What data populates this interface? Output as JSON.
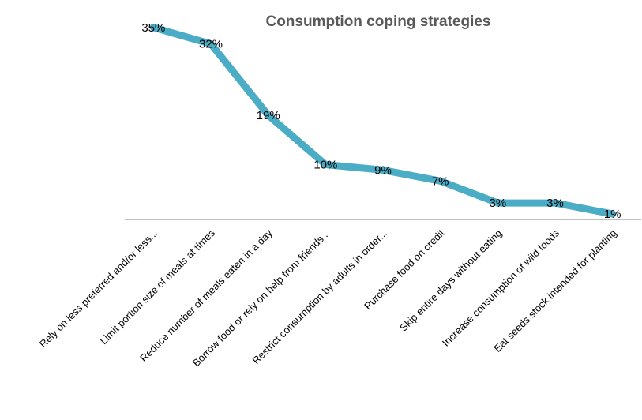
{
  "chart_data": {
    "type": "line",
    "title": "Consumption coping strategies",
    "categories": [
      "Rely on less preferred and/or less...",
      "Limit portion size of meals at times",
      "Reduce number of meals eaten in a day",
      "Borrow food or rely on help from friends...",
      "Restrict consumption by adults in order...",
      "Purchase food on credit",
      "Skip entire days without eating",
      "Increase consumption of wild foods",
      "Eat seeds stock intended for planting"
    ],
    "series": [
      {
        "values": [
          35,
          32,
          19,
          10,
          9,
          7,
          3,
          3,
          1
        ],
        "labels": [
          "35%",
          "32%",
          "19%",
          "10%",
          "9%",
          "7%",
          "3%",
          "3%",
          "1%"
        ]
      }
    ],
    "ylim": [
      0,
      40
    ],
    "grid": false,
    "legend": "none",
    "colors": {
      "line": "#4BACC6",
      "axis": "#808080",
      "title": "#595959"
    }
  }
}
